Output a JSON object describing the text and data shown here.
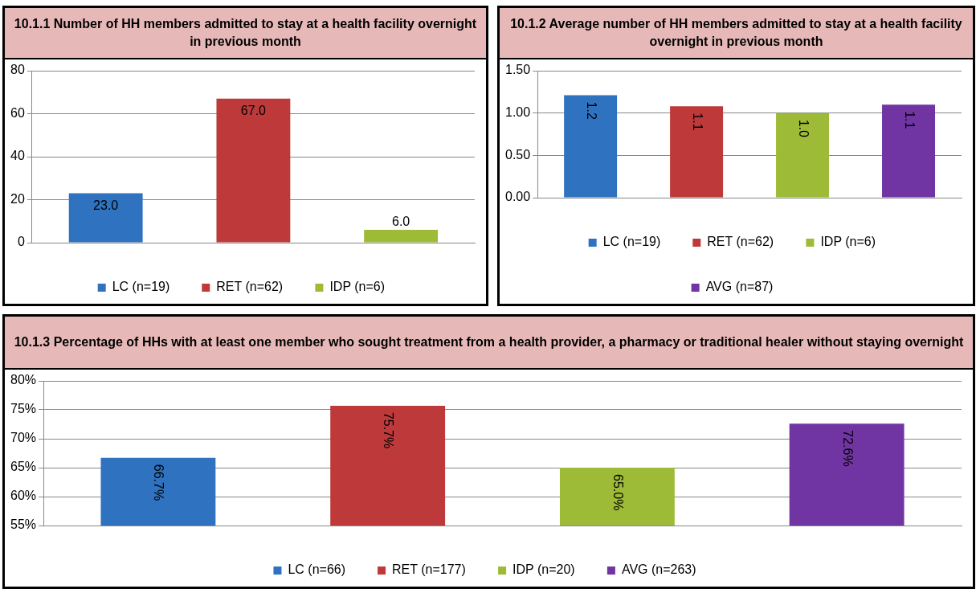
{
  "chart_data": [
    {
      "type": "bar",
      "title": "10.1.1 Number of HH members admitted to stay at a health facility overnight in previous month",
      "categories": [
        null
      ],
      "ylim": [
        0,
        80
      ],
      "yticks": [
        0,
        20,
        40,
        60,
        80
      ],
      "grid": "y",
      "legend": "bottom",
      "series": [
        {
          "name": "LC (n=19)",
          "color": "#2f72c0",
          "values": [
            23.0
          ],
          "value_labels": [
            "23.0"
          ]
        },
        {
          "name": "RET (n=62)",
          "color": "#be3a3a",
          "values": [
            67.0
          ],
          "value_labels": [
            "67.0"
          ]
        },
        {
          "name": "IDP (n=6)",
          "color": "#9dbb36",
          "values": [
            6.0
          ],
          "value_labels": [
            "6.0"
          ]
        }
      ]
    },
    {
      "type": "bar",
      "title": "10.1.2 Average number of HH members admitted to stay at a health facility overnight in previous month",
      "categories": [
        null
      ],
      "ylim": [
        0,
        1.5
      ],
      "yticks": [
        {
          "value": 0,
          "label": "0.00"
        },
        {
          "value": 0.5,
          "label": "0.50"
        },
        {
          "value": 1,
          "label": "1.00"
        },
        {
          "value": 1.5,
          "label": "1.50"
        }
      ],
      "grid": "y",
      "legend": "bottom",
      "series": [
        {
          "name": "LC (n=19)",
          "color": "#2f72c0",
          "values": [
            1.21
          ],
          "value_labels": [
            "1.2"
          ]
        },
        {
          "name": "RET (n=62)",
          "color": "#be3a3a",
          "values": [
            1.08
          ],
          "value_labels": [
            "1.1"
          ]
        },
        {
          "name": "IDP (n=6)",
          "color": "#9dbb36",
          "values": [
            1.0
          ],
          "value_labels": [
            "1.0"
          ]
        },
        {
          "name": "AVG (n=87)",
          "color": "#7035a3",
          "values": [
            1.1
          ],
          "value_labels": [
            "1.1"
          ]
        }
      ]
    },
    {
      "type": "bar",
      "title": "10.1.3 Percentage of HHs with at least one member who sought treatment from a health provider, a pharmacy or traditional healer without staying overnight",
      "categories": [
        null
      ],
      "ylim": [
        55,
        80
      ],
      "yticks": [
        {
          "value": 55,
          "label": "55%"
        },
        {
          "value": 60,
          "label": "60%"
        },
        {
          "value": 65,
          "label": "65%"
        },
        {
          "value": 70,
          "label": "70%"
        },
        {
          "value": 75,
          "label": "75%"
        },
        {
          "value": 80,
          "label": "80%"
        }
      ],
      "grid": "y",
      "legend": "bottom",
      "series": [
        {
          "name": "LC (n=66)",
          "color": "#2f72c0",
          "values": [
            66.7
          ],
          "value_labels": [
            "66.7%"
          ]
        },
        {
          "name": "RET (n=177)",
          "color": "#be3a3a",
          "values": [
            75.7
          ],
          "value_labels": [
            "75.7%"
          ]
        },
        {
          "name": "IDP (n=20)",
          "color": "#9dbb36",
          "values": [
            65.0
          ],
          "value_labels": [
            "65.0%"
          ]
        },
        {
          "name": "AVG (n=263)",
          "color": "#7035a3",
          "values": [
            72.6
          ],
          "value_labels": [
            "72.6%"
          ]
        }
      ]
    }
  ]
}
